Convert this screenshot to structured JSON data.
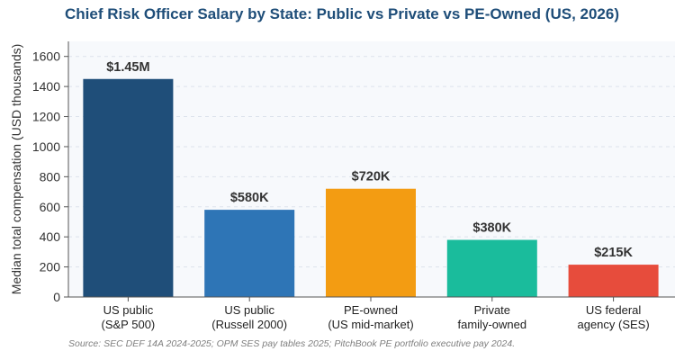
{
  "title": "Chief Risk Officer Salary by State: Public vs Private vs PE-Owned (US, 2026)",
  "source": "Source: SEC DEF 14A 2024-2025; OPM SES pay tables 2025; PitchBook PE portfolio executive pay 2024.",
  "chart_data": {
    "type": "bar",
    "title": "Chief Risk Officer Salary by State: Public vs Private vs PE-Owned (US, 2026)",
    "xlabel": "",
    "ylabel": "Median total compensation (USD thousands)",
    "ylim": [
      0,
      1700
    ],
    "yticks": [
      0,
      200,
      400,
      600,
      800,
      1000,
      1200,
      1400,
      1600
    ],
    "grid": true,
    "categories": [
      [
        "US public",
        "(S&P 500)"
      ],
      [
        "US public",
        "(Russell 2000)"
      ],
      [
        "PE-owned",
        "(US mid-market)"
      ],
      [
        "Private",
        "family-owned"
      ],
      [
        "US federal",
        "agency (SES)"
      ]
    ],
    "values": [
      1450,
      580,
      720,
      380,
      215
    ],
    "data_labels": [
      "$1.45M",
      "$580K",
      "$720K",
      "$380K",
      "$215K"
    ],
    "colors": [
      "#1f4e79",
      "#2e75b6",
      "#f39c12",
      "#1abc9c",
      "#e74c3c"
    ]
  }
}
